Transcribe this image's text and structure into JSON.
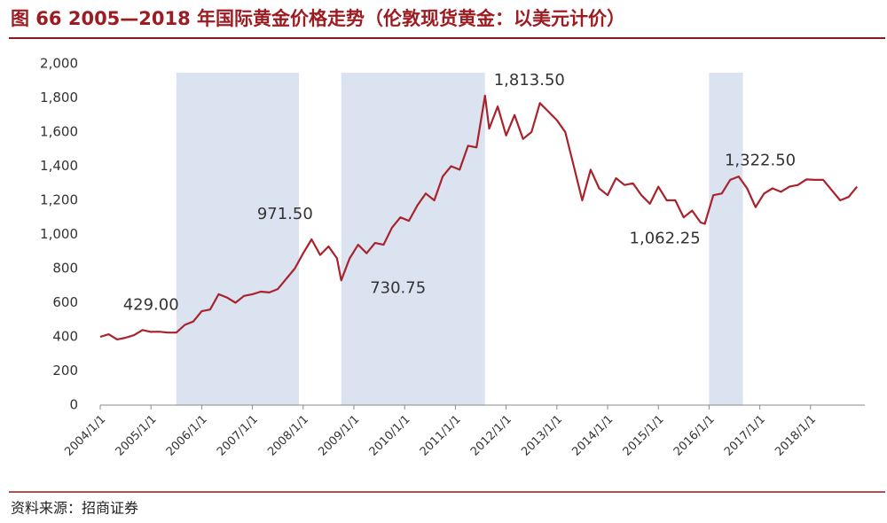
{
  "chart_data": {
    "type": "line",
    "title": "图 66 2005—2018 年国际黄金价格走势（伦敦现货黄金：以美元计价）",
    "source": "资料来源：招商证券",
    "xlim": [
      "2004/1/1",
      "2019/1/1"
    ],
    "xticks": [
      "2004/1/1",
      "2005/1/1",
      "2006/1/1",
      "2007/1/1",
      "2008/1/1",
      "2009/1/1",
      "2010/1/1",
      "2011/1/1",
      "2012/1/1",
      "2013/1/1",
      "2014/1/1",
      "2015/1/1",
      "2016/1/1",
      "2017/1/1",
      "2018/1/1"
    ],
    "ylim": [
      0,
      2000
    ],
    "yticks": [
      0,
      200,
      400,
      600,
      800,
      {
        "value": 1000,
        "label": "1,000"
      },
      {
        "value": 1200,
        "label": "1,200"
      },
      {
        "value": 1400,
        "label": "1,400"
      },
      {
        "value": 1600,
        "label": "1,600"
      },
      {
        "value": 1800,
        "label": "1,800"
      },
      {
        "value": 2000,
        "label": "2,000"
      }
    ],
    "shaded_periods": [
      [
        "2005/7/1",
        "2007/12/1"
      ],
      [
        "2008/10/1",
        "2011/8/1"
      ],
      [
        "2016/1/1",
        "2016/9/1"
      ]
    ],
    "shade_color": "#dbe3f1",
    "x": [
      "2004/1/1",
      "2004/3/1",
      "2004/5/1",
      "2004/7/1",
      "2004/9/1",
      "2004/11/1",
      "2005/1/1",
      "2005/3/1",
      "2005/5/1",
      "2005/7/1",
      "2005/9/1",
      "2005/11/1",
      "2006/1/1",
      "2006/3/1",
      "2006/5/1",
      "2006/7/1",
      "2006/9/1",
      "2006/11/1",
      "2007/1/1",
      "2007/3/1",
      "2007/5/1",
      "2007/7/1",
      "2007/9/1",
      "2007/11/1",
      "2008/1/1",
      "2008/3/1",
      "2008/5/1",
      "2008/7/1",
      "2008/9/1",
      "2008/10/1",
      "2008/12/1",
      "2009/2/1",
      "2009/4/1",
      "2009/6/1",
      "2009/8/1",
      "2009/10/1",
      "2009/12/1",
      "2010/2/1",
      "2010/4/1",
      "2010/6/1",
      "2010/8/1",
      "2010/10/1",
      "2010/12/1",
      "2011/2/1",
      "2011/4/1",
      "2011/6/1",
      "2011/8/1",
      "2011/9/1",
      "2011/11/1",
      "2012/1/1",
      "2012/3/1",
      "2012/5/1",
      "2012/7/1",
      "2012/9/1",
      "2012/11/1",
      "2013/1/1",
      "2013/3/1",
      "2013/5/1",
      "2013/7/1",
      "2013/9/1",
      "2013/11/1",
      "2014/1/1",
      "2014/3/1",
      "2014/5/1",
      "2014/7/1",
      "2014/9/1",
      "2014/11/1",
      "2015/1/1",
      "2015/3/1",
      "2015/5/1",
      "2015/7/1",
      "2015/9/1",
      "2015/11/1",
      "2015/12/1",
      "2016/2/1",
      "2016/4/1",
      "2016/6/1",
      "2016/8/1",
      "2016/10/1",
      "2016/12/1",
      "2017/2/1",
      "2017/4/1",
      "2017/6/1",
      "2017/8/1",
      "2017/10/1",
      "2017/12/1",
      "2018/2/1",
      "2018/4/1",
      "2018/6/1",
      "2018/8/1",
      "2018/10/1",
      "2018/12/1"
    ],
    "series": [
      {
        "color": "#a8232b",
        "values": [
          400,
          415,
          385,
          395,
          410,
          440,
          429,
          430,
          425,
          425,
          470,
          490,
          550,
          560,
          650,
          630,
          600,
          640,
          650,
          665,
          660,
          680,
          740,
          800,
          890,
          971.5,
          880,
          930,
          860,
          730.75,
          860,
          940,
          890,
          950,
          940,
          1040,
          1100,
          1080,
          1170,
          1240,
          1200,
          1340,
          1400,
          1380,
          1520,
          1510,
          1813.5,
          1620,
          1750,
          1580,
          1700,
          1560,
          1600,
          1770,
          1720,
          1670,
          1600,
          1400,
          1200,
          1380,
          1270,
          1230,
          1330,
          1290,
          1300,
          1230,
          1180,
          1280,
          1200,
          1200,
          1100,
          1140,
          1070,
          1062.25,
          1230,
          1240,
          1320,
          1340,
          1270,
          1160,
          1240,
          1270,
          1250,
          1280,
          1290,
          1322.5,
          1320,
          1320,
          1260,
          1200,
          1220,
          1280
        ]
      }
    ],
    "annotations": [
      {
        "x": "2005/1/1",
        "value": 429,
        "label": "429.00"
      },
      {
        "x": "2008/3/1",
        "value": 971.5,
        "label": "971.50"
      },
      {
        "x": "2008/10/1",
        "value": 730.75,
        "label": "730.75"
      },
      {
        "x": "2011/8/1",
        "value": 1813.5,
        "label": "1,813.50"
      },
      {
        "x": "2015/12/1",
        "value": 1062.25,
        "label": "1,062.25"
      },
      {
        "x": "2017/12/1",
        "value": 1322.5,
        "label": "1,322.50"
      }
    ]
  }
}
